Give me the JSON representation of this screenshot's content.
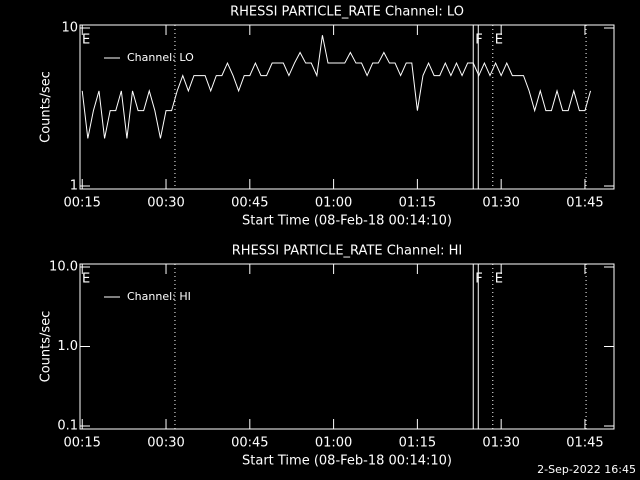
{
  "chart_data": [
    {
      "type": "line",
      "title": "RHESSI PARTICLE_RATE Channel: LO",
      "xlabel": "Start Time (08-Feb-18 00:14:10)",
      "ylabel": "Counts/sec",
      "ylog": true,
      "ylim": [
        1,
        10
      ],
      "yticks": [
        1,
        10
      ],
      "xlim": [
        14.6,
        110.2
      ],
      "xticks": [
        {
          "value": 15,
          "label": "00:15"
        },
        {
          "value": 30,
          "label": "00:30"
        },
        {
          "value": 45,
          "label": "00:45"
        },
        {
          "value": 60,
          "label": "01:00"
        },
        {
          "value": 75,
          "label": "01:15"
        },
        {
          "value": 90,
          "label": "01:30"
        },
        {
          "value": 105,
          "label": "01:45"
        }
      ],
      "vlines": [
        {
          "x": 31.6,
          "style": "dotted"
        },
        {
          "x": 85.0,
          "style": "solid"
        },
        {
          "x": 85.9,
          "style": "solid"
        },
        {
          "x": 88.5,
          "style": "dotted"
        },
        {
          "x": 105.2,
          "style": "dotted"
        }
      ],
      "annotations": [
        {
          "label": "E",
          "x": 14.6
        },
        {
          "label": "F",
          "x": 85.0
        },
        {
          "label": "E",
          "x": 88.5
        }
      ],
      "x": [
        15,
        16,
        17,
        18,
        19,
        20,
        21,
        22,
        23,
        24,
        25,
        26,
        27,
        28,
        29,
        30,
        31,
        32,
        33,
        34,
        35,
        36,
        37,
        38,
        39,
        40,
        41,
        42,
        43,
        44,
        45,
        46,
        47,
        48,
        49,
        50,
        51,
        52,
        53,
        54,
        55,
        56,
        57,
        58,
        59,
        60,
        61,
        62,
        63,
        64,
        65,
        66,
        67,
        68,
        69,
        70,
        71,
        72,
        73,
        74,
        75,
        76,
        77,
        78,
        79,
        80,
        81,
        82,
        83,
        84,
        85,
        86,
        87,
        88,
        89,
        90,
        91,
        92,
        93,
        94,
        95,
        96,
        97,
        98,
        99,
        100,
        101,
        102,
        103,
        104,
        105,
        106
      ],
      "series": [
        {
          "name": "Channel: LO",
          "color": "#ffffff",
          "values": [
            4,
            2,
            3,
            4,
            2,
            3,
            3,
            4,
            2,
            4,
            3,
            3,
            4,
            3,
            2,
            3,
            3,
            4,
            5,
            4,
            5,
            5,
            5,
            4,
            5,
            5,
            6,
            5,
            4,
            5,
            5,
            6,
            5,
            5,
            6,
            6,
            6,
            5,
            6,
            7,
            6,
            6,
            5,
            9,
            6,
            6,
            6,
            6,
            7,
            6,
            6,
            5,
            6,
            6,
            7,
            6,
            6,
            5,
            6,
            6,
            3,
            5,
            6,
            5,
            5,
            6,
            5,
            6,
            5,
            6,
            6,
            5,
            6,
            5,
            6,
            5,
            6,
            5,
            5,
            5,
            4,
            3,
            4,
            3,
            3,
            4,
            3,
            3,
            4,
            3,
            3,
            4
          ]
        }
      ]
    },
    {
      "type": "line",
      "title": "RHESSI PARTICLE_RATE Channel: HI",
      "xlabel": "Start Time (08-Feb-18 00:14:10)",
      "ylabel": "Counts/sec",
      "ylog": true,
      "ylim": [
        0.1,
        10
      ],
      "yticks": [
        0.1,
        {
          "value": 1,
          "label": "1.0"
        },
        {
          "value": 10,
          "label": "10.0"
        }
      ],
      "xlim": [
        14.6,
        110.2
      ],
      "xticks": [
        {
          "value": 15,
          "label": "00:15"
        },
        {
          "value": 30,
          "label": "00:30"
        },
        {
          "value": 45,
          "label": "00:45"
        },
        {
          "value": 60,
          "label": "01:00"
        },
        {
          "value": 75,
          "label": "01:15"
        },
        {
          "value": 90,
          "label": "01:30"
        },
        {
          "value": 105,
          "label": "01:45"
        }
      ],
      "vlines": [
        {
          "x": 31.6,
          "style": "dotted"
        },
        {
          "x": 85.0,
          "style": "solid"
        },
        {
          "x": 85.9,
          "style": "solid"
        },
        {
          "x": 88.5,
          "style": "dotted"
        },
        {
          "x": 105.2,
          "style": "dotted"
        }
      ],
      "annotations": [
        {
          "label": "E",
          "x": 14.6
        },
        {
          "label": "F",
          "x": 85.0
        },
        {
          "label": "E",
          "x": 88.5
        }
      ],
      "x": [],
      "series": [
        {
          "name": "Channel: HI",
          "color": "#ffffff",
          "values": []
        }
      ]
    }
  ],
  "footer": "2-Sep-2022 16:45"
}
